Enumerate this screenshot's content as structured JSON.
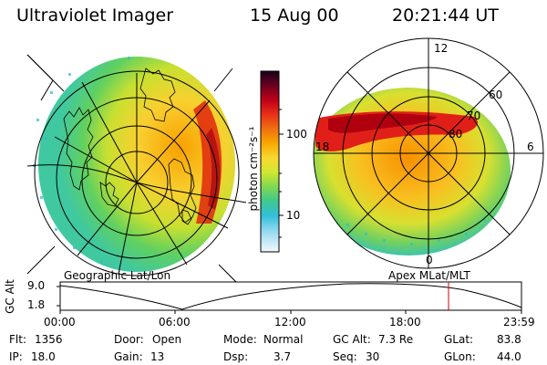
{
  "header": {
    "instrument": "Ultraviolet Imager",
    "date": "15 Aug 00",
    "time": "20:21:44 UT"
  },
  "colorbar": {
    "unit_label": "photon cm⁻²s⁻¹",
    "ticks": [
      "100",
      "10"
    ],
    "values": [
      100,
      10
    ],
    "colors": [
      "#1a0010",
      "#5a0018",
      "#b00010",
      "#e8201a",
      "#f26a10",
      "#f8a000",
      "#f8d030",
      "#d8e830",
      "#a0e040",
      "#60d060",
      "#30c8a0",
      "#20b8e0",
      "#80d8f0",
      "#d8f0f8",
      "#f2f8fc"
    ]
  },
  "left_map": {
    "label": "Geographic Lat/Lon"
  },
  "right_map": {
    "label": "Apex MLat/MLT",
    "lat_labels": [
      "60",
      "70",
      "80"
    ],
    "mlt_labels": [
      "12",
      "18",
      "6",
      "0"
    ]
  },
  "alt_plot": {
    "ylabel": "GC Alt",
    "yticks": [
      "9.0",
      "1.8"
    ],
    "xticks": [
      "00:00",
      "06:00",
      "12:00",
      "18:00",
      "23:59"
    ],
    "marker_time": "20:21",
    "marker_color": "#d00000"
  },
  "info": {
    "flt_label": "Flt:",
    "flt": "1356",
    "ip_label": "IP:",
    "ip": "18.0",
    "door_label": "Door:",
    "door": "Open",
    "gain_label": "Gain:",
    "gain": "13",
    "mode_label": "Mode:",
    "mode": "Normal",
    "dsp_label": "Dsp:",
    "dsp": "3.7",
    "gcalt_label": "GC Alt:",
    "gcalt": "7.3 Re",
    "seq_label": "Seq:",
    "seq": "30",
    "glat_label": "GLat:",
    "glat": "83.8",
    "glon_label": "GLon:",
    "glon": "44.0"
  }
}
